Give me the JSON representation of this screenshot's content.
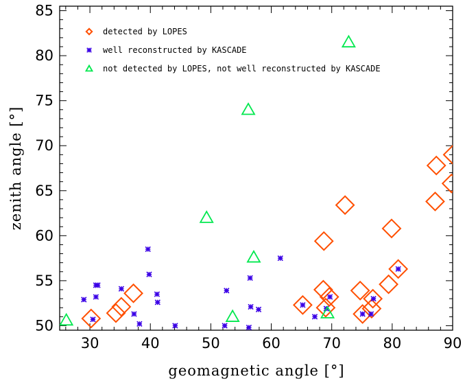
{
  "chart_data": {
    "type": "scatter",
    "xlabel": "geomagnetic angle [°]",
    "ylabel": "zenith angle [°]",
    "xlim": [
      25,
      90
    ],
    "ylim": [
      49.5,
      85.5
    ],
    "xticks": [
      30,
      40,
      50,
      60,
      70,
      80,
      90
    ],
    "yticks": [
      50,
      55,
      60,
      65,
      70,
      75,
      80,
      85
    ],
    "grid": false,
    "legend_position": "top-left",
    "series": [
      {
        "name": "detected by LOPES",
        "marker": "diamond-open",
        "color": "#ff4f00",
        "points": [
          {
            "x": 30.2,
            "y": 50.8
          },
          {
            "x": 34.3,
            "y": 51.4
          },
          {
            "x": 35.2,
            "y": 52.1
          },
          {
            "x": 37.2,
            "y": 53.6
          },
          {
            "x": 65.2,
            "y": 52.3
          },
          {
            "x": 68.6,
            "y": 54.0
          },
          {
            "x": 69.0,
            "y": 52.0
          },
          {
            "x": 69.6,
            "y": 53.2
          },
          {
            "x": 68.7,
            "y": 59.4
          },
          {
            "x": 72.2,
            "y": 63.4
          },
          {
            "x": 74.7,
            "y": 53.9
          },
          {
            "x": 75.1,
            "y": 51.3
          },
          {
            "x": 76.8,
            "y": 53.0
          },
          {
            "x": 76.6,
            "y": 51.9
          },
          {
            "x": 79.4,
            "y": 54.6
          },
          {
            "x": 79.9,
            "y": 60.8
          },
          {
            "x": 81.0,
            "y": 56.3
          },
          {
            "x": 87.1,
            "y": 63.8
          },
          {
            "x": 87.3,
            "y": 67.8
          },
          {
            "x": 89.8,
            "y": 65.8
          },
          {
            "x": 90.0,
            "y": 69.0
          }
        ]
      },
      {
        "name": "well reconstructed by KASCADE",
        "marker": "asterisk",
        "color": "#3a00e6",
        "points": [
          {
            "x": 29.0,
            "y": 52.9
          },
          {
            "x": 30.5,
            "y": 50.7
          },
          {
            "x": 31.0,
            "y": 54.5
          },
          {
            "x": 31.3,
            "y": 54.5
          },
          {
            "x": 31.0,
            "y": 53.2
          },
          {
            "x": 35.2,
            "y": 54.1
          },
          {
            "x": 37.3,
            "y": 51.3
          },
          {
            "x": 38.2,
            "y": 50.2
          },
          {
            "x": 39.6,
            "y": 58.5
          },
          {
            "x": 39.8,
            "y": 55.7
          },
          {
            "x": 41.1,
            "y": 53.5
          },
          {
            "x": 41.2,
            "y": 52.6
          },
          {
            "x": 44.1,
            "y": 50.0
          },
          {
            "x": 52.3,
            "y": 50.0
          },
          {
            "x": 52.6,
            "y": 53.9
          },
          {
            "x": 56.3,
            "y": 49.8
          },
          {
            "x": 56.5,
            "y": 55.3
          },
          {
            "x": 56.6,
            "y": 52.1
          },
          {
            "x": 57.9,
            "y": 51.8
          },
          {
            "x": 61.5,
            "y": 57.5
          },
          {
            "x": 65.2,
            "y": 52.3
          },
          {
            "x": 67.2,
            "y": 51.0
          },
          {
            "x": 69.1,
            "y": 51.9
          },
          {
            "x": 69.7,
            "y": 53.2
          },
          {
            "x": 75.1,
            "y": 51.3
          },
          {
            "x": 76.5,
            "y": 51.3
          },
          {
            "x": 76.9,
            "y": 53.0
          },
          {
            "x": 81.0,
            "y": 56.3
          }
        ]
      },
      {
        "name": "not detected by LOPES, not well reconstructed by KASCADE",
        "marker": "triangle-open",
        "color": "#00e84e",
        "points": [
          {
            "x": 26.1,
            "y": 50.6
          },
          {
            "x": 49.3,
            "y": 62.0
          },
          {
            "x": 53.6,
            "y": 51.0
          },
          {
            "x": 56.2,
            "y": 74.0
          },
          {
            "x": 57.1,
            "y": 57.6
          },
          {
            "x": 69.3,
            "y": 51.4
          },
          {
            "x": 72.8,
            "y": 81.5
          }
        ]
      }
    ]
  }
}
